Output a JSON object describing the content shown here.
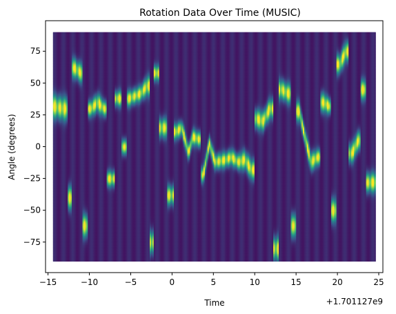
{
  "chart_data": {
    "type": "heatmap",
    "title": "Rotation Data Over Time (MUSIC)",
    "xlabel": "Time",
    "ylabel": "Angle (degrees)",
    "x_offset_label": "+1.701127e9",
    "xlim": [
      -15.3,
      25.5
    ],
    "ylim": [
      -99,
      99
    ],
    "data_extent": {
      "x": [
        -14.4,
        24.6
      ],
      "y": [
        -90,
        90
      ]
    },
    "x_ticks": [
      -15,
      -10,
      -5,
      0,
      5,
      10,
      15,
      20,
      25
    ],
    "x_tick_labels": [
      "−15",
      "−10",
      "−5",
      "0",
      "5",
      "10",
      "15",
      "20",
      "25"
    ],
    "y_ticks": [
      75,
      50,
      25,
      0,
      -25,
      -50,
      -75
    ],
    "y_tick_labels": [
      "75",
      "50",
      "25",
      "0",
      "−25",
      "−50",
      "−75"
    ],
    "colormap": "viridis",
    "colors": {
      "low": "#440154",
      "mid_low": "#31688e",
      "mid": "#21918c",
      "mid_high": "#5ec962",
      "high": "#fde725"
    },
    "grid": false,
    "legend": "none",
    "peak_track": [
      {
        "t": -14.4,
        "angle": 32,
        "w": 6
      },
      {
        "t": -13.0,
        "angle": 30,
        "w": 6
      },
      {
        "t": -12.3,
        "angle": -40,
        "w": 6
      },
      {
        "t": -11.8,
        "angle": 62,
        "w": 5
      },
      {
        "t": -11.0,
        "angle": 58,
        "w": 5
      },
      {
        "t": -10.5,
        "angle": -62,
        "w": 6
      },
      {
        "t": -9.8,
        "angle": 30,
        "w": 4
      },
      {
        "t": -9.0,
        "angle": 35,
        "w": 5
      },
      {
        "t": -8.2,
        "angle": 30,
        "w": 4
      },
      {
        "t": -7.5,
        "angle": -25,
        "w": 4
      },
      {
        "t": -6.5,
        "angle": 38,
        "w": 4
      },
      {
        "t": -5.8,
        "angle": 0,
        "w": 4
      },
      {
        "t": -5.2,
        "angle": 38,
        "w": 4
      },
      {
        "t": -4.5,
        "angle": 40,
        "w": 4
      },
      {
        "t": -3.8,
        "angle": 42,
        "w": 4
      },
      {
        "t": -3.0,
        "angle": 48,
        "w": 5
      },
      {
        "t": -2.5,
        "angle": -75,
        "w": 6
      },
      {
        "t": -2.0,
        "angle": 58,
        "w": 4
      },
      {
        "t": -1.0,
        "angle": 15,
        "w": 5
      },
      {
        "t": -0.2,
        "angle": -38,
        "w": 5
      },
      {
        "t": 0.5,
        "angle": 12,
        "w": 4
      },
      {
        "t": 1.2,
        "angle": 15,
        "w": 4
      },
      {
        "t": 2.0,
        "angle": -5,
        "w": 4
      },
      {
        "t": 2.5,
        "angle": 8,
        "w": 4
      },
      {
        "t": 3.2,
        "angle": 6,
        "w": 4
      },
      {
        "t": 3.8,
        "angle": -22,
        "w": 4
      },
      {
        "t": 4.5,
        "angle": 3,
        "w": 4
      },
      {
        "t": 5.2,
        "angle": -12,
        "w": 4
      },
      {
        "t": 6.5,
        "angle": -10,
        "w": 4
      },
      {
        "t": 7.2,
        "angle": -8,
        "w": 4
      },
      {
        "t": 8.0,
        "angle": -12,
        "w": 4
      },
      {
        "t": 8.8,
        "angle": -10,
        "w": 5
      },
      {
        "t": 9.6,
        "angle": -18,
        "w": 5
      },
      {
        "t": 10.3,
        "angle": 22,
        "w": 5
      },
      {
        "t": 11.0,
        "angle": 20,
        "w": 5
      },
      {
        "t": 11.8,
        "angle": 30,
        "w": 5
      },
      {
        "t": 12.6,
        "angle": -80,
        "w": 6
      },
      {
        "t": 13.3,
        "angle": 45,
        "w": 5
      },
      {
        "t": 14.0,
        "angle": 42,
        "w": 5
      },
      {
        "t": 14.7,
        "angle": -62,
        "w": 6
      },
      {
        "t": 15.4,
        "angle": 28,
        "w": 5
      },
      {
        "t": 16.0,
        "angle": 10,
        "w": 4
      },
      {
        "t": 16.8,
        "angle": -12,
        "w": 5
      },
      {
        "t": 17.6,
        "angle": -8,
        "w": 4
      },
      {
        "t": 18.3,
        "angle": 35,
        "w": 5
      },
      {
        "t": 19.0,
        "angle": 32,
        "w": 4
      },
      {
        "t": 19.6,
        "angle": -50,
        "w": 6
      },
      {
        "t": 20.3,
        "angle": 65,
        "w": 5
      },
      {
        "t": 21.0,
        "angle": 75,
        "w": 5
      },
      {
        "t": 21.8,
        "angle": -5,
        "w": 5
      },
      {
        "t": 22.5,
        "angle": 5,
        "w": 5
      },
      {
        "t": 23.2,
        "angle": 45,
        "w": 5
      },
      {
        "t": 23.8,
        "angle": -28,
        "w": 5
      },
      {
        "t": 24.6,
        "angle": -28,
        "w": 5
      }
    ]
  }
}
